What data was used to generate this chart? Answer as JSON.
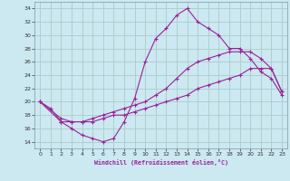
{
  "xlabel": "Windchill (Refroidissement éolien,°C)",
  "xlim": [
    -0.5,
    23.5
  ],
  "ylim": [
    13,
    35
  ],
  "xticks": [
    0,
    1,
    2,
    3,
    4,
    5,
    6,
    7,
    8,
    9,
    10,
    11,
    12,
    13,
    14,
    15,
    16,
    17,
    18,
    19,
    20,
    21,
    22,
    23
  ],
  "yticks": [
    14,
    16,
    18,
    20,
    22,
    24,
    26,
    28,
    30,
    32,
    34
  ],
  "bg_color": "#cce8f0",
  "line_color": "#992299",
  "grid_color": "#aacccc",
  "line1_x": [
    0,
    1,
    2,
    3,
    4,
    5,
    6,
    7,
    8,
    9,
    10,
    11,
    12,
    13,
    14,
    15,
    16,
    17,
    18,
    19,
    20,
    21,
    22,
    23
  ],
  "line1_y": [
    20,
    19,
    17,
    16,
    15,
    14.5,
    14,
    14.5,
    17,
    20.5,
    26,
    29.5,
    31,
    33,
    34,
    32,
    31,
    30,
    28,
    28,
    26.5,
    24.5,
    23.5,
    21
  ],
  "line2_x": [
    0,
    2,
    3,
    4,
    5,
    6,
    7,
    8,
    9,
    10,
    11,
    12,
    13,
    14,
    15,
    16,
    17,
    18,
    19,
    20,
    21,
    22,
    23
  ],
  "line2_y": [
    20,
    17,
    17,
    17,
    17.5,
    18,
    18.5,
    19,
    19.5,
    20,
    21,
    22,
    23.5,
    25,
    26,
    26.5,
    27,
    27.5,
    27.5,
    27.5,
    26.5,
    25,
    21.5
  ],
  "line3_x": [
    0,
    2,
    3,
    4,
    5,
    6,
    7,
    8,
    9,
    10,
    11,
    12,
    13,
    14,
    15,
    16,
    17,
    18,
    19,
    20,
    21,
    22,
    23
  ],
  "line3_y": [
    20,
    17.5,
    17,
    17,
    17,
    17.5,
    18,
    18,
    18.5,
    19,
    19.5,
    20,
    20.5,
    21,
    22,
    22.5,
    23,
    23.5,
    24,
    25,
    25,
    25,
    21.5
  ]
}
